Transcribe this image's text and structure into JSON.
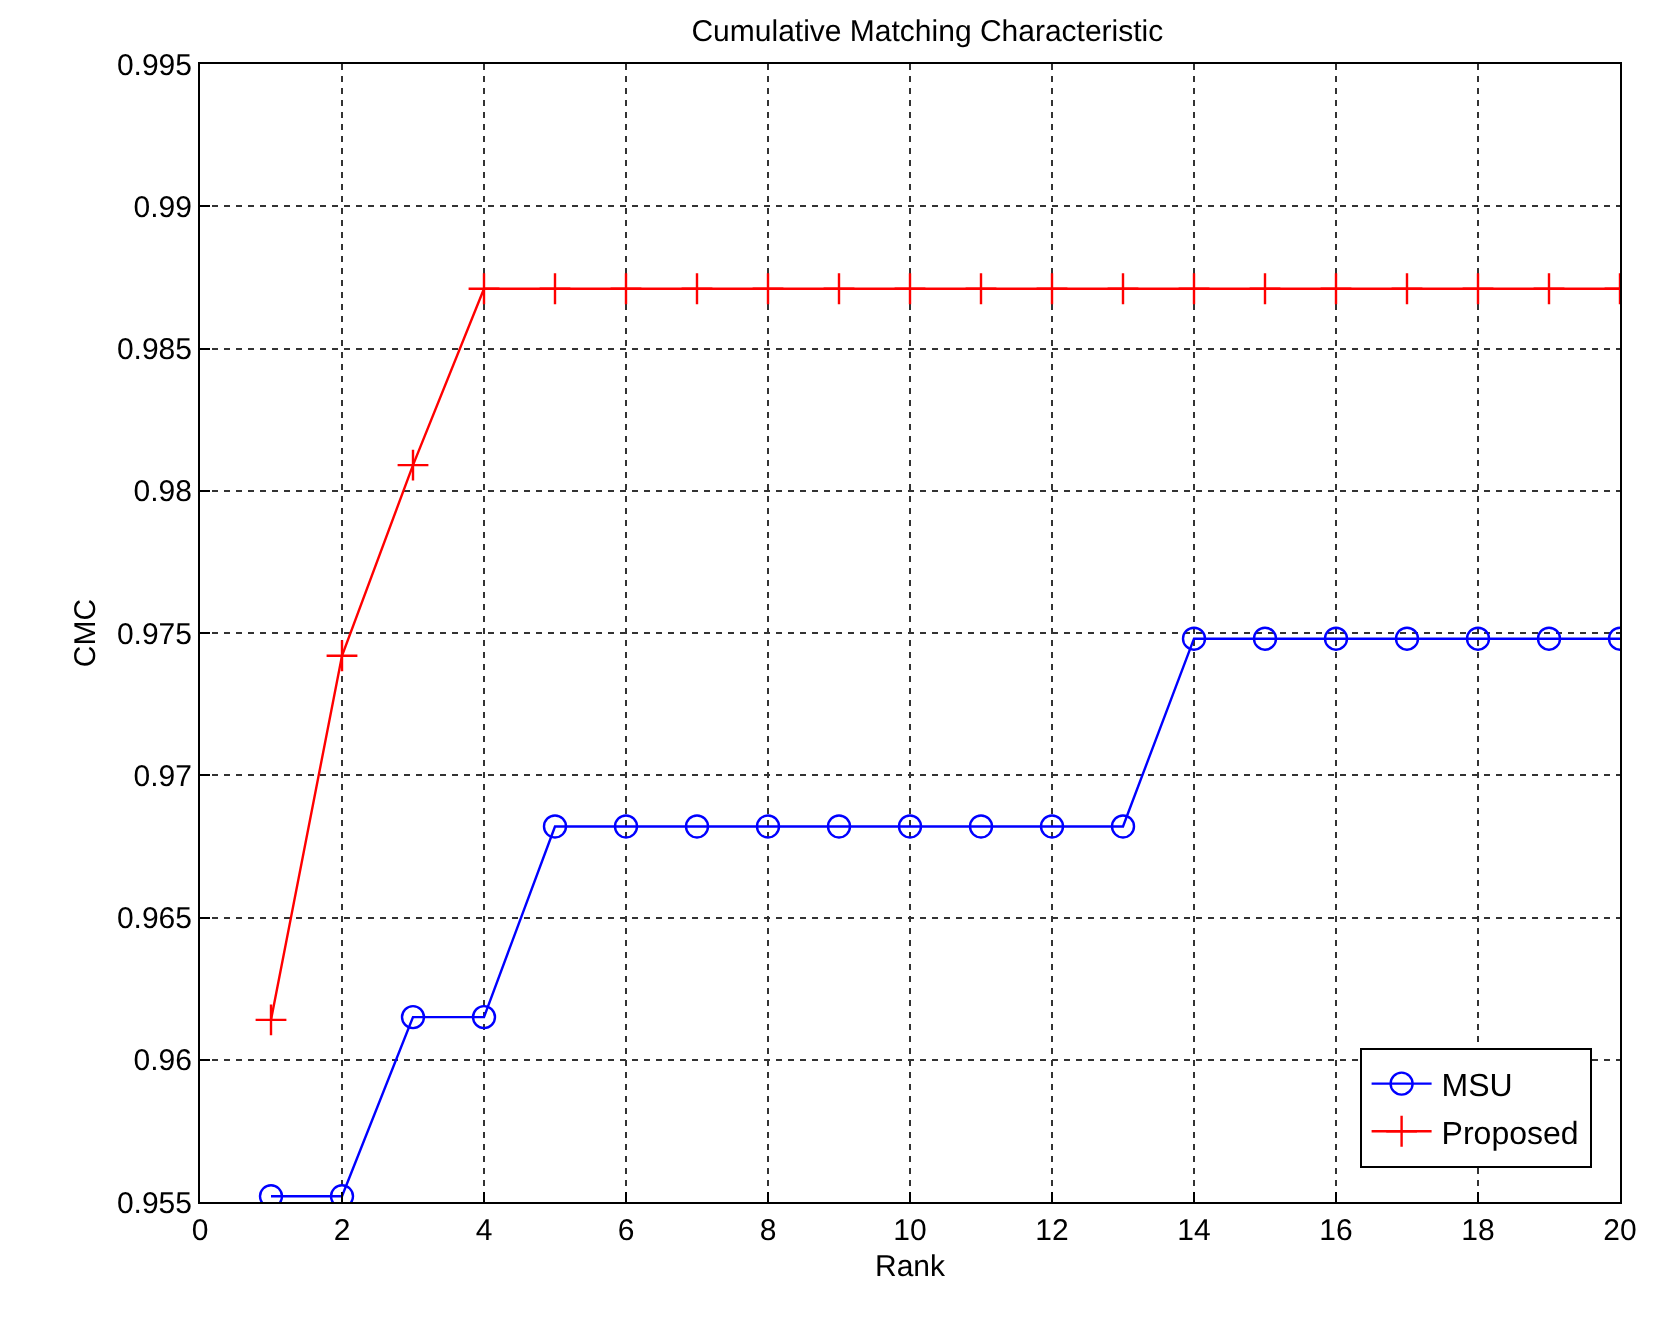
{
  "chart_data": {
    "type": "line",
    "title": "Cumulative Matching Characteristic",
    "xlabel": "Rank",
    "ylabel": "CMC",
    "x": [
      1,
      2,
      3,
      4,
      5,
      6,
      7,
      8,
      9,
      10,
      11,
      12,
      13,
      14,
      15,
      16,
      17,
      18,
      19,
      20
    ],
    "series": [
      {
        "name": "MSU",
        "color": "#0000ff",
        "marker": "circle",
        "values": [
          0.9552,
          0.9552,
          0.9615,
          0.9615,
          0.9682,
          0.9682,
          0.9682,
          0.9682,
          0.9682,
          0.9682,
          0.9682,
          0.9682,
          0.9682,
          0.9748,
          0.9748,
          0.9748,
          0.9748,
          0.9748,
          0.9748,
          0.9748
        ]
      },
      {
        "name": "Proposed",
        "color": "#ff0000",
        "marker": "cross",
        "values": [
          0.9614,
          0.9742,
          0.9809,
          0.9871,
          0.9871,
          0.9871,
          0.9871,
          0.9871,
          0.9871,
          0.9871,
          0.9871,
          0.9871,
          0.9871,
          0.9871,
          0.9871,
          0.9871,
          0.9871,
          0.9871,
          0.9871,
          0.9871
        ]
      }
    ],
    "xlim": [
      0,
      20
    ],
    "xticks": [
      0,
      2,
      4,
      6,
      8,
      10,
      12,
      14,
      16,
      18,
      20
    ],
    "ylim": [
      0.955,
      0.995
    ],
    "yticks": [
      0.955,
      0.96,
      0.965,
      0.97,
      0.975,
      0.98,
      0.985,
      0.99,
      0.995
    ],
    "grid": true,
    "legend": "bottom right",
    "line_style": "solid"
  }
}
